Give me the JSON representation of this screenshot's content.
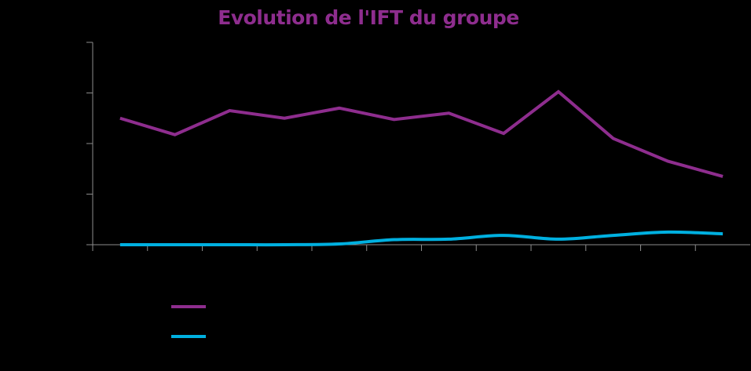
{
  "colors": {
    "background": "#000000",
    "title": "#8E2D8E",
    "axis": "#8C8C8C",
    "series_1": "#8E2D8E",
    "series_2": "#00B0E0"
  },
  "chart_data": {
    "type": "line",
    "title": "Evolution de l'IFT du groupe",
    "xlabel": "",
    "ylabel": "",
    "x": [
      "1",
      "2",
      "3",
      "4",
      "5",
      "6",
      "7",
      "8",
      "9",
      "10",
      "11",
      "12"
    ],
    "ylim": [
      0,
      8
    ],
    "ytick_step": 2,
    "yticks": [
      0,
      2,
      4,
      6,
      8
    ],
    "grid": false,
    "legend_position": "bottom-left",
    "tick_labels_visible": false,
    "series": [
      {
        "name": "",
        "color": "#8E2D8E",
        "smooth": false,
        "values": [
          5.0,
          4.35,
          5.3,
          5.0,
          5.4,
          4.95,
          5.2,
          4.4,
          6.05,
          4.2,
          3.3,
          2.7
        ]
      },
      {
        "name": "",
        "color": "#00B0E0",
        "smooth": true,
        "values": [
          0.0,
          0.0,
          0.0,
          0.0,
          0.03,
          0.2,
          0.22,
          0.37,
          0.22,
          0.37,
          0.5,
          0.43
        ]
      }
    ]
  },
  "legend": {
    "items": [
      {
        "label": "",
        "color": "#8E2D8E"
      },
      {
        "label": "",
        "color": "#00B0E0"
      }
    ]
  }
}
